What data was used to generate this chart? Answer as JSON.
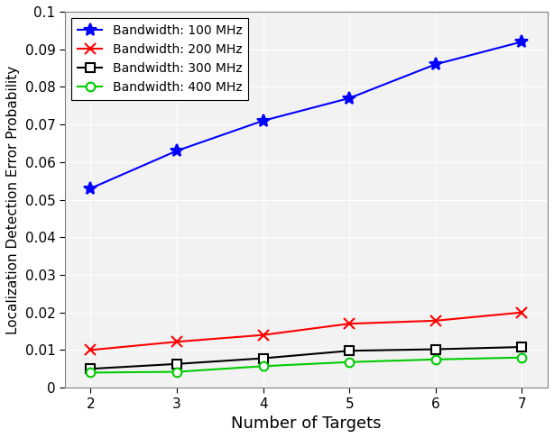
{
  "x": [
    2,
    3,
    4,
    5,
    6,
    7
  ],
  "series": [
    {
      "label": "Bandwidth: 100 MHz",
      "color": "#0000FF",
      "marker": "*",
      "markersize": 10,
      "markerfacecolor": "#0000FF",
      "markeredgecolor": "#0000FF",
      "values": [
        0.053,
        0.063,
        0.071,
        0.077,
        0.086,
        0.092
      ]
    },
    {
      "label": "Bandwidth: 200 MHz",
      "color": "#FF0000",
      "marker": "x",
      "markersize": 8,
      "markerfacecolor": "none",
      "markeredgecolor": "#FF0000",
      "values": [
        0.01,
        0.0122,
        0.014,
        0.017,
        0.0178,
        0.02
      ]
    },
    {
      "label": "Bandwidth: 300 MHz",
      "color": "#000000",
      "marker": "s",
      "markersize": 7,
      "markerfacecolor": "white",
      "markeredgecolor": "#000000",
      "values": [
        0.005,
        0.0063,
        0.0078,
        0.0098,
        0.0102,
        0.0108
      ]
    },
    {
      "label": "Bandwidth: 400 MHz",
      "color": "#00CC00",
      "marker": "o",
      "markersize": 7,
      "markerfacecolor": "white",
      "markeredgecolor": "#00CC00",
      "values": [
        0.004,
        0.0042,
        0.0057,
        0.0068,
        0.0075,
        0.008
      ]
    }
  ],
  "xlabel": "Number of Targets",
  "ylabel": "Localization Detection Error Probability",
  "xlim": [
    1.7,
    7.3
  ],
  "ylim": [
    0,
    0.1
  ],
  "yticks": [
    0,
    0.01,
    0.02,
    0.03,
    0.04,
    0.05,
    0.06,
    0.07,
    0.08,
    0.09,
    0.1
  ],
  "xticks": [
    2,
    3,
    4,
    5,
    6,
    7
  ],
  "grid": true,
  "legend_loc": "upper left",
  "background_color": "#FFFFFF",
  "axes_facecolor": "#F2F2F2",
  "linewidth": 1.5,
  "figsize": [
    6.14,
    4.86
  ],
  "dpi": 100
}
